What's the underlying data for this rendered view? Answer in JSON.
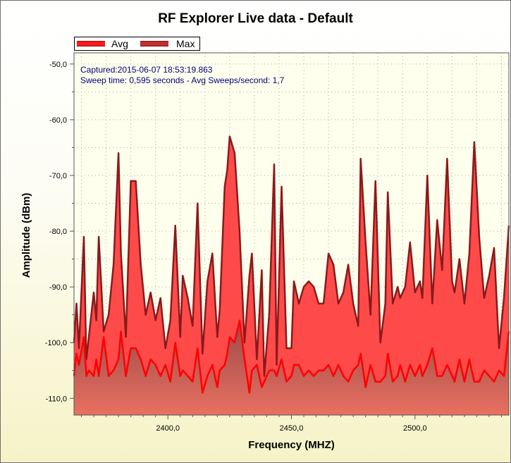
{
  "chart_data": {
    "type": "area",
    "title": "RF Explorer Live data - Default",
    "xlabel": "Frequency (MHZ)",
    "ylabel": "Amplitude (dBm)",
    "xlim": [
      2362.0,
      2538.0
    ],
    "ylim": [
      -113.0,
      -48.0
    ],
    "yticks": [
      -50.0,
      -60.0,
      -70.0,
      -80.0,
      -90.0,
      -100.0,
      -110.0
    ],
    "ytick_labels": [
      "-50,0",
      "-60,0",
      "-70,0",
      "-80,0",
      "-90,0",
      "-100,0",
      "-110,0"
    ],
    "xticks": [
      2400.0,
      2450.0,
      2500.0
    ],
    "xtick_labels": [
      "2400,0",
      "2450,0",
      "2500,0"
    ],
    "grid": true,
    "legend_position": "top-left",
    "annotation_lines": [
      "Captured:2015-06-07 18:53:19.863",
      "Sweep time: 0,595 seconds - Avg Sweeps/second: 1,7"
    ],
    "colors": {
      "max_fill": "#ff4a4a",
      "max_line": "#8b1a1a",
      "avg_line": "#ff0000",
      "avg_fill_dark": "#9a4a4a",
      "avg_fill_light": "#e87060",
      "plot_bg": "#ffffee"
    },
    "series": [
      {
        "name": "Max",
        "x": [
          2362,
          2363,
          2364,
          2366,
          2367,
          2368,
          2370,
          2371,
          2372,
          2374,
          2376,
          2378,
          2380,
          2381,
          2383,
          2385,
          2387,
          2389,
          2391,
          2393,
          2395,
          2397,
          2399,
          2401,
          2403,
          2405,
          2406,
          2408,
          2410,
          2412,
          2414,
          2416,
          2418,
          2420,
          2421,
          2423,
          2424,
          2425,
          2427,
          2429,
          2431,
          2433,
          2434,
          2436,
          2438,
          2439,
          2441,
          2443,
          2444,
          2446,
          2448,
          2450,
          2451,
          2453,
          2455,
          2457,
          2459,
          2461,
          2463,
          2465,
          2467,
          2469,
          2471,
          2473,
          2475,
          2477,
          2478,
          2480,
          2482,
          2484,
          2486,
          2488,
          2489,
          2491,
          2493,
          2494,
          2496,
          2498,
          2500,
          2502,
          2503,
          2505,
          2507,
          2509,
          2511,
          2513,
          2515,
          2516,
          2518,
          2520,
          2522,
          2524,
          2526,
          2528,
          2530,
          2532,
          2534,
          2536,
          2538
        ],
        "values": [
          -100,
          -93,
          -101,
          -81,
          -103,
          -99,
          -91,
          -96,
          -81,
          -98,
          -95,
          -86,
          -66,
          -84,
          -99,
          -71,
          -71,
          -86,
          -95,
          -91,
          -96,
          -92,
          -101,
          -96,
          -79,
          -99,
          -88,
          -92,
          -97,
          -75,
          -102,
          -89,
          -84,
          -99,
          -94,
          -72,
          -69,
          -63,
          -66,
          -80,
          -100,
          -88,
          -84,
          -103,
          -87,
          -106,
          -95,
          -68,
          -104,
          -72,
          -101,
          -101,
          -89,
          -93,
          -90,
          -89,
          -90,
          -93,
          -93,
          -84,
          -86,
          -93,
          -91,
          -86,
          -93,
          -97,
          -67,
          -82,
          -95,
          -71,
          -100,
          -93,
          -73,
          -93,
          -90,
          -92,
          -90,
          -82,
          -91,
          -89,
          -92,
          -70,
          -93,
          -78,
          -87,
          -67,
          -89,
          -91,
          -85,
          -93,
          -84,
          -64,
          -81,
          -92,
          -88,
          -83,
          -101,
          -92,
          -79
        ]
      },
      {
        "name": "Avg",
        "x": [
          2362,
          2363,
          2364,
          2366,
          2367,
          2368,
          2370,
          2371,
          2372,
          2374,
          2376,
          2378,
          2380,
          2381,
          2383,
          2385,
          2387,
          2389,
          2391,
          2393,
          2395,
          2397,
          2399,
          2401,
          2403,
          2405,
          2406,
          2408,
          2410,
          2412,
          2414,
          2416,
          2418,
          2420,
          2421,
          2423,
          2424,
          2425,
          2427,
          2429,
          2431,
          2433,
          2434,
          2436,
          2438,
          2439,
          2441,
          2443,
          2444,
          2446,
          2448,
          2450,
          2451,
          2453,
          2455,
          2457,
          2459,
          2461,
          2463,
          2465,
          2467,
          2469,
          2471,
          2473,
          2475,
          2477,
          2478,
          2480,
          2482,
          2484,
          2486,
          2488,
          2489,
          2491,
          2493,
          2494,
          2496,
          2498,
          2500,
          2502,
          2503,
          2505,
          2507,
          2509,
          2511,
          2513,
          2515,
          2516,
          2518,
          2520,
          2522,
          2524,
          2526,
          2528,
          2530,
          2532,
          2534,
          2536,
          2538
        ],
        "values": [
          -106,
          -102,
          -104,
          -99,
          -106,
          -105,
          -106,
          -103,
          -106,
          -99,
          -106,
          -105,
          -103,
          -98,
          -106,
          -101,
          -101,
          -103,
          -106,
          -103,
          -104,
          -106,
          -104,
          -107,
          -100,
          -106,
          -105,
          -106,
          -107,
          -101,
          -109,
          -106,
          -104,
          -108,
          -105,
          -104,
          -102,
          -99,
          -100,
          -96,
          -103,
          -109,
          -105,
          -104,
          -108,
          -107,
          -105,
          -105,
          -106,
          -103,
          -107,
          -106,
          -104,
          -104,
          -106,
          -105,
          -106,
          -105,
          -105,
          -104,
          -106,
          -104,
          -106,
          -107,
          -105,
          -104,
          -102,
          -108,
          -104,
          -107,
          -107,
          -106,
          -102,
          -107,
          -106,
          -104,
          -107,
          -104,
          -106,
          -104,
          -106,
          -104,
          -101,
          -106,
          -106,
          -104,
          -106,
          -107,
          -103,
          -107,
          -103,
          -107,
          -107,
          -105,
          -106,
          -107,
          -105,
          -106,
          -98
        ]
      }
    ]
  }
}
